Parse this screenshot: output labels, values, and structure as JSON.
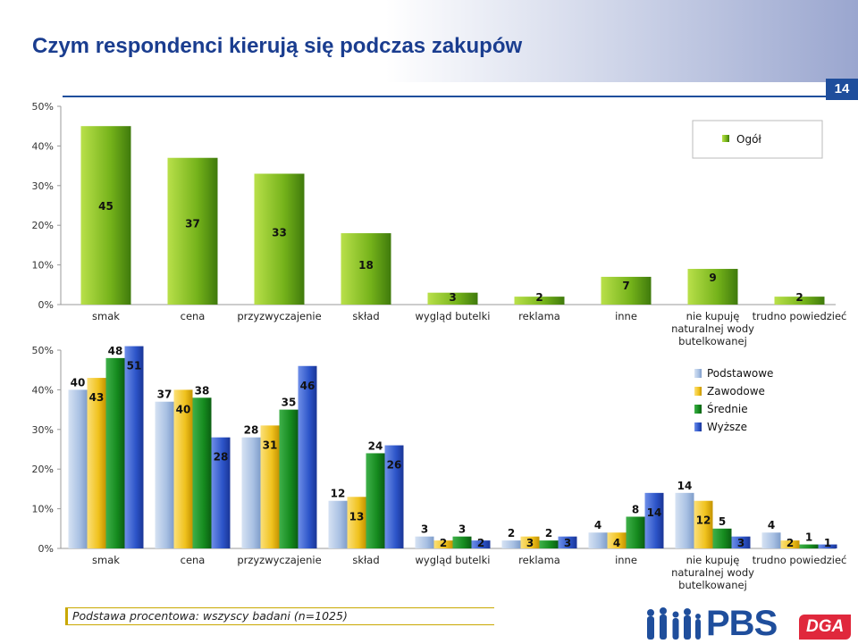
{
  "header": {
    "title": "Czym respondenci kierują się podczas zakupów",
    "page_number": "14"
  },
  "footnote": "Podstawa procentowa: wszyscy badani (n=1025)",
  "logos": {
    "pbs": "PBS",
    "dga": "DGA"
  },
  "colors": {
    "Ogół": "#74b21a",
    "Podstawowe": "#a9c1e3",
    "Zawodowe": "#f0c21e",
    "Średnie": "#158a1e",
    "Wyższe": "#2c54c8",
    "accent": "#1f4e9c"
  },
  "chart_data": [
    {
      "type": "bar",
      "categories": [
        "smak",
        "cena",
        "przyzwyczajenie",
        "skład",
        "wygląd butelki",
        "reklama",
        "inne",
        "nie kupuję naturalnej wody butelkowanej",
        "trudno powiedzieć"
      ],
      "series": [
        {
          "name": "Ogół",
          "values": [
            45,
            37,
            33,
            18,
            3,
            2,
            7,
            9,
            2
          ]
        }
      ],
      "ylim": [
        0,
        50
      ],
      "yticks": [
        "0%",
        "10%",
        "20%",
        "30%",
        "40%",
        "50%"
      ],
      "legend": "top-right",
      "grid": false
    },
    {
      "type": "bar",
      "categories": [
        "smak",
        "cena",
        "przyzwyczajenie",
        "skład",
        "wygląd butelki",
        "reklama",
        "inne",
        "nie kupuję naturalnej wody butelkowanej",
        "trudno powiedzieć"
      ],
      "series": [
        {
          "name": "Podstawowe",
          "values": [
            40,
            37,
            28,
            12,
            3,
            2,
            4,
            14,
            4
          ]
        },
        {
          "name": "Zawodowe",
          "values": [
            43,
            40,
            31,
            13,
            2,
            3,
            4,
            12,
            2
          ]
        },
        {
          "name": "Średnie",
          "values": [
            48,
            38,
            35,
            24,
            3,
            2,
            8,
            5,
            1
          ]
        },
        {
          "name": "Wyższe",
          "values": [
            51,
            28,
            46,
            26,
            2,
            3,
            14,
            3,
            1
          ]
        }
      ],
      "ylim": [
        0,
        50
      ],
      "yticks": [
        "0%",
        "10%",
        "20%",
        "30%",
        "40%",
        "50%"
      ],
      "legend": "top-right",
      "grid": false
    }
  ]
}
